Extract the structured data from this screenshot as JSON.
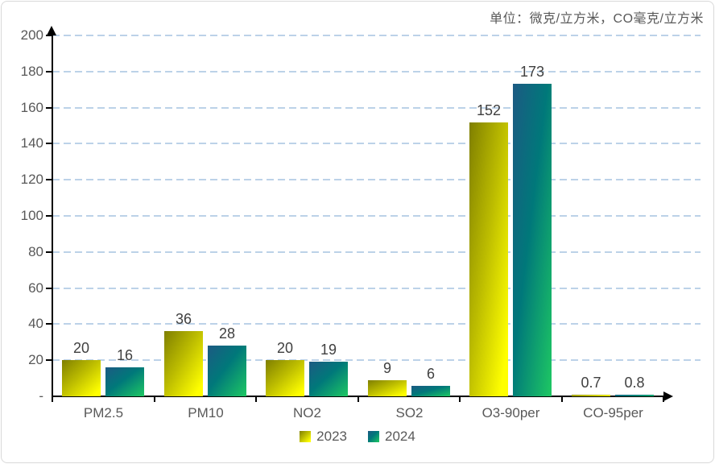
{
  "unit_label": "单位：微克/立方米，CO毫克/立方米",
  "colors": {
    "grid": "#bcd2e8",
    "axis": "#000000",
    "tick_label": "#595959",
    "data_label": "#404040",
    "series_2023_dark": "#7f7f00",
    "series_2023_bright": "#ffff00",
    "series_2024_dark": "#1c5a83",
    "series_2024_bright": "#1ec863"
  },
  "chart_data": {
    "type": "bar",
    "title": "",
    "categories": [
      "PM2.5",
      "PM10",
      "NO2",
      "SO2",
      "O3-90per",
      "CO-95per"
    ],
    "series": [
      {
        "name": "2023",
        "values": [
          20,
          36,
          20,
          9,
          152,
          0.7
        ]
      },
      {
        "name": "2024",
        "values": [
          16,
          28,
          19,
          6,
          173,
          0.8
        ]
      }
    ],
    "ylim": [
      0,
      200
    ],
    "ytick_step": 20,
    "ytick_labels": [
      "-",
      "20",
      "40",
      "60",
      "80",
      "100",
      "120",
      "140",
      "160",
      "180",
      "200"
    ],
    "grid": "horizontal-dashed",
    "legend_position": "bottom",
    "axis_arrows": true
  }
}
